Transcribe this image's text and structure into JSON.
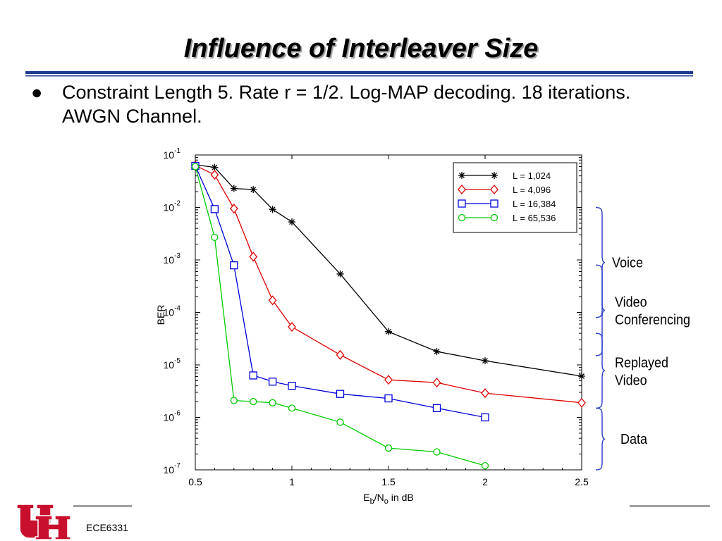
{
  "slide": {
    "title": "Influence of Interleaver Size",
    "bullet": "Constraint Length 5. Rate r = 1/2. Log-MAP decoding. 18 iterations. AWGN Channel.",
    "footer": "ECE6331"
  },
  "colors": {
    "title_rule": "#1f3a93",
    "footer_rule": "#a0a0a0",
    "brace": "#3344cc",
    "logo": "#c8102e"
  },
  "chart_data": {
    "type": "line",
    "title": "",
    "xlabel": {
      "base": "E",
      "sub1": "b",
      "mid": "/N",
      "sub2": "o",
      "tail": " in dB"
    },
    "ylabel": "BER",
    "xlim": [
      0.5,
      2.5
    ],
    "ylim_exponent": [
      -7,
      -1
    ],
    "y_scale": "log",
    "x_ticks": [
      "0.5",
      "1",
      "1.5",
      "2",
      "2.5"
    ],
    "x_tick_values": [
      0.5,
      1,
      1.5,
      2,
      2.5
    ],
    "y_ticks": [
      {
        "base": "10",
        "exp": "-1",
        "value": 0.1
      },
      {
        "base": "10",
        "exp": "-2",
        "value": 0.01
      },
      {
        "base": "10",
        "exp": "-3",
        "value": 0.001
      },
      {
        "base": "10",
        "exp": "-4",
        "value": 0.0001
      },
      {
        "base": "10",
        "exp": "-5",
        "value": 1e-05
      },
      {
        "base": "10",
        "exp": "-6",
        "value": 1e-06
      },
      {
        "base": "10",
        "exp": "-7",
        "value": 1e-07
      }
    ],
    "legend_position": "top-right",
    "series": [
      {
        "name": "L = 1,024",
        "color": "#000000",
        "marker": "star",
        "x": [
          0.5,
          0.6,
          0.7,
          0.8,
          0.9,
          1.0,
          1.25,
          1.5,
          1.75,
          2.0,
          2.5
        ],
        "y": [
          0.065,
          0.058,
          0.023,
          0.022,
          0.0092,
          0.0053,
          0.00054,
          4.3e-05,
          1.8e-05,
          1.2e-05,
          6.1e-06
        ]
      },
      {
        "name": "L = 4,096",
        "color": "#dd0000",
        "marker": "diamond",
        "x": [
          0.5,
          0.6,
          0.7,
          0.8,
          0.9,
          1.0,
          1.25,
          1.5,
          1.75,
          2.0,
          2.5
        ],
        "y": [
          0.063,
          0.042,
          0.0095,
          0.00115,
          0.00017,
          5.3e-05,
          1.55e-05,
          5.2e-06,
          4.6e-06,
          2.9e-06,
          1.9e-06
        ]
      },
      {
        "name": "L = 16,384",
        "color": "#0000dd",
        "marker": "square",
        "x": [
          0.5,
          0.6,
          0.7,
          0.8,
          0.9,
          1.0,
          1.25,
          1.5,
          1.75,
          2.0
        ],
        "y": [
          0.062,
          0.0093,
          0.00079,
          6.3e-06,
          4.8e-06,
          4e-06,
          2.8e-06,
          2.3e-06,
          1.5e-06,
          1e-06
        ]
      },
      {
        "name": "L = 65,536",
        "color": "#00cc00",
        "marker": "circle",
        "x": [
          0.5,
          0.6,
          0.7,
          0.8,
          0.9,
          1.0,
          1.25,
          1.5,
          1.75,
          2.0
        ],
        "y": [
          0.06,
          0.0027,
          2.1e-06,
          2e-06,
          1.9e-06,
          1.5e-06,
          8.1e-07,
          2.6e-07,
          2.2e-07,
          1.2e-07
        ]
      }
    ],
    "annotations": [
      {
        "label": [
          "Voice"
        ],
        "ber_range": [
          8e-05,
          0.01
        ]
      },
      {
        "label": [
          "Video",
          "Conferencing"
        ],
        "ber_range": [
          1.5e-05,
          0.0008
        ]
      },
      {
        "label": [
          "Replayed",
          "Video"
        ],
        "ber_range": [
          1.5e-06,
          4e-05
        ]
      },
      {
        "label": [
          "Data"
        ],
        "ber_range": [
          1e-07,
          1.5e-06
        ]
      }
    ]
  }
}
